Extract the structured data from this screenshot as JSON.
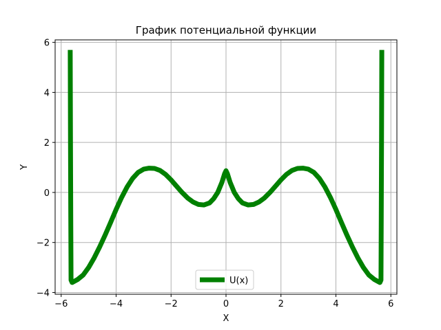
{
  "chart_data": {
    "type": "line",
    "title": "График потенциальной функции",
    "xlabel": "X",
    "ylabel": "Y",
    "xlim": [
      -6.22,
      6.22
    ],
    "ylim": [
      -4.07,
      6.1
    ],
    "xticks": [
      -6,
      -4,
      -2,
      0,
      2,
      4,
      6
    ],
    "yticks": [
      -4,
      -2,
      0,
      2,
      4,
      6
    ],
    "grid": true,
    "legend_placement": "lower-center",
    "series": [
      {
        "name": "U(x)",
        "color": "#008000",
        "points": [
          [
            -5.67,
            5.7
          ],
          [
            -5.66,
            2.0
          ],
          [
            -5.65,
            -1.0
          ],
          [
            -5.64,
            -3.5
          ],
          [
            -5.6,
            -3.6
          ],
          [
            -5.4,
            -3.48
          ],
          [
            -5.2,
            -3.3
          ],
          [
            -5.0,
            -3.0
          ],
          [
            -4.8,
            -2.62
          ],
          [
            -4.6,
            -2.18
          ],
          [
            -4.4,
            -1.7
          ],
          [
            -4.2,
            -1.2
          ],
          [
            -4.0,
            -0.68
          ],
          [
            -3.8,
            -0.2
          ],
          [
            -3.6,
            0.22
          ],
          [
            -3.4,
            0.56
          ],
          [
            -3.2,
            0.8
          ],
          [
            -3.0,
            0.93
          ],
          [
            -2.8,
            0.97
          ],
          [
            -2.6,
            0.96
          ],
          [
            -2.4,
            0.88
          ],
          [
            -2.2,
            0.72
          ],
          [
            -2.0,
            0.5
          ],
          [
            -1.8,
            0.25
          ],
          [
            -1.6,
            0.0
          ],
          [
            -1.4,
            -0.22
          ],
          [
            -1.2,
            -0.38
          ],
          [
            -1.0,
            -0.48
          ],
          [
            -0.8,
            -0.5
          ],
          [
            -0.6,
            -0.42
          ],
          [
            -0.45,
            -0.25
          ],
          [
            -0.3,
            0.0
          ],
          [
            -0.15,
            0.4
          ],
          [
            -0.05,
            0.75
          ],
          [
            0.0,
            0.87
          ],
          [
            0.05,
            0.75
          ],
          [
            0.15,
            0.4
          ],
          [
            0.3,
            0.0
          ],
          [
            0.45,
            -0.25
          ],
          [
            0.6,
            -0.42
          ],
          [
            0.8,
            -0.5
          ],
          [
            1.0,
            -0.48
          ],
          [
            1.2,
            -0.38
          ],
          [
            1.4,
            -0.22
          ],
          [
            1.6,
            0.0
          ],
          [
            1.8,
            0.25
          ],
          [
            2.0,
            0.5
          ],
          [
            2.2,
            0.72
          ],
          [
            2.4,
            0.88
          ],
          [
            2.6,
            0.96
          ],
          [
            2.8,
            0.97
          ],
          [
            3.0,
            0.93
          ],
          [
            3.2,
            0.8
          ],
          [
            3.4,
            0.56
          ],
          [
            3.6,
            0.22
          ],
          [
            3.8,
            -0.2
          ],
          [
            4.0,
            -0.68
          ],
          [
            4.2,
            -1.2
          ],
          [
            4.4,
            -1.7
          ],
          [
            4.6,
            -2.18
          ],
          [
            4.8,
            -2.62
          ],
          [
            5.0,
            -3.0
          ],
          [
            5.2,
            -3.3
          ],
          [
            5.4,
            -3.48
          ],
          [
            5.6,
            -3.6
          ],
          [
            5.64,
            -3.5
          ],
          [
            5.65,
            -1.0
          ],
          [
            5.66,
            2.0
          ],
          [
            5.67,
            5.7
          ]
        ]
      }
    ]
  }
}
